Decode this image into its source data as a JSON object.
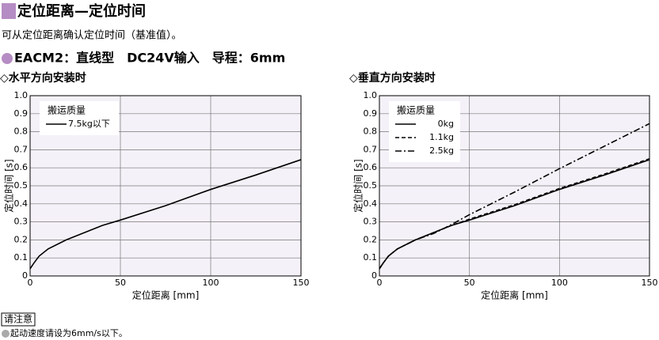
{
  "header": {
    "title": "定位距离—定位时间",
    "subtitle": "可从定位距离确认定位时间（基准值）。",
    "model": "EACM2：直线型　DC24V输入　导程：6mm"
  },
  "chart_data": [
    {
      "type": "line",
      "title": "◇水平方向安装时",
      "x_label": "定位距离 [mm]",
      "y_label": "定位时间 [s]",
      "legend_title": "搬运质量",
      "x": [
        0,
        2,
        5,
        10,
        20,
        30,
        40,
        50,
        75,
        100,
        125,
        150
      ],
      "series": [
        {
          "name": "7.5kg以下",
          "color": "#000000",
          "dash": "solid",
          "values": [
            0.04,
            0.07,
            0.11,
            0.15,
            0.2,
            0.24,
            0.28,
            0.31,
            0.39,
            0.48,
            0.56,
            0.645
          ]
        }
      ],
      "xlim": [
        0,
        150
      ],
      "xticks": [
        0,
        50,
        100,
        150
      ],
      "ylim": [
        0,
        1
      ],
      "yticks": [
        0,
        0.1,
        0.2,
        0.3,
        0.4,
        0.5,
        0.6,
        0.7,
        0.8,
        0.9,
        {
          "value": 1,
          "label": "1.0"
        }
      ],
      "grid": true
    },
    {
      "type": "line",
      "title": "◇垂直方向安装时",
      "x_label": "定位距离 [mm]",
      "y_label": "定位时间 [s]",
      "legend_title": "搬运质量",
      "x": [
        0,
        2,
        5,
        10,
        20,
        30,
        40,
        50,
        75,
        100,
        125,
        150
      ],
      "series": [
        {
          "name": "0kg",
          "color": "#000000",
          "dash": "solid",
          "values": [
            0.04,
            0.07,
            0.11,
            0.15,
            0.2,
            0.24,
            0.28,
            0.31,
            0.39,
            0.48,
            0.56,
            0.645
          ]
        },
        {
          "name": "1.1kg",
          "color": "#000000",
          "dash": "dashed",
          "values": [
            0.04,
            0.07,
            0.11,
            0.15,
            0.2,
            0.24,
            0.28,
            0.315,
            0.395,
            0.485,
            0.565,
            0.65
          ]
        },
        {
          "name": "2.5kg",
          "color": "#000000",
          "dash": "dashdot",
          "values": [
            0.04,
            0.07,
            0.11,
            0.15,
            0.2,
            0.235,
            0.285,
            0.34,
            0.465,
            0.595,
            0.72,
            0.845
          ]
        }
      ],
      "xlim": [
        0,
        150
      ],
      "xticks": [
        0,
        50,
        100,
        150
      ],
      "ylim": [
        0,
        1
      ],
      "yticks": [
        0,
        0.1,
        0.2,
        0.3,
        0.4,
        0.5,
        0.6,
        0.7,
        0.8,
        0.9,
        {
          "value": 1,
          "label": "1.0"
        }
      ],
      "grid": true
    }
  ],
  "note": {
    "label": "请注意",
    "text": "起动速度请设为6mm/s以下。"
  }
}
